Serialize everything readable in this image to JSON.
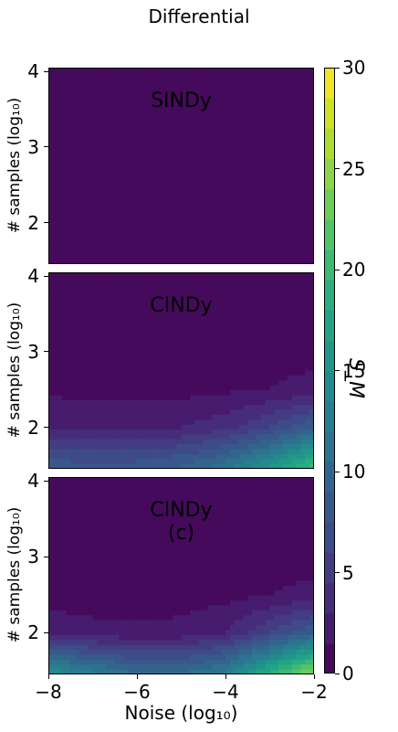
{
  "figure": {
    "suptitle": "Differential",
    "xlabel": "Noise (log₁₀)",
    "ylabel": "# samples (log₁₀)",
    "colorbar_label": "S_M"
  },
  "colors": {
    "viridis_low": "#440154",
    "viridis_mid": "#21918c",
    "viridis_high": "#fde725"
  },
  "chart_data": [
    {
      "type": "heatmap",
      "title": "SINDy",
      "xlabel": "",
      "ylabel": "# samples (log₁₀)",
      "xlim": [
        -8,
        -2
      ],
      "ylim": [
        1.45,
        4.05
      ],
      "x": [
        -8,
        -7,
        -6,
        -5,
        -4,
        -3,
        -2
      ],
      "y": [
        1.5,
        2,
        2.5,
        3,
        3.5,
        4
      ],
      "z": [
        [
          1.2,
          0.8,
          0.3,
          0.4,
          0.6,
          0.5,
          0.4
        ],
        [
          0.6,
          0.5,
          0.3,
          0.4,
          1.0,
          0.5,
          0.3
        ],
        [
          0.3,
          0.2,
          0.2,
          0.2,
          0.3,
          0.2,
          0.2
        ],
        [
          0.2,
          0.2,
          0.1,
          0.2,
          0.2,
          0.2,
          0.1
        ],
        [
          0.2,
          0.1,
          0.1,
          0.1,
          0.2,
          0.1,
          0.1
        ],
        [
          0.1,
          0.1,
          0.1,
          0.1,
          0.1,
          0.1,
          0.1
        ]
      ],
      "yticks": [
        2,
        3,
        4
      ],
      "xticks": []
    },
    {
      "type": "heatmap",
      "title": "CINDy",
      "xlabel": "",
      "ylabel": "# samples (log₁₀)",
      "xlim": [
        -8,
        -2
      ],
      "ylim": [
        1.45,
        4.05
      ],
      "x": [
        -8,
        -7,
        -6,
        -5,
        -4,
        -3,
        -2
      ],
      "y": [
        1.5,
        2,
        2.5,
        3,
        3.5,
        4
      ],
      "z": [
        [
          8,
          8,
          8,
          9,
          11,
          15,
          20
        ],
        [
          3,
          2.5,
          2.5,
          3,
          4,
          6,
          9
        ],
        [
          1.2,
          1.0,
          1.0,
          1.0,
          1.2,
          1.5,
          2
        ],
        [
          1.0,
          0.8,
          0.8,
          0.8,
          0.8,
          1.0,
          1.0
        ],
        [
          0.6,
          0.6,
          0.7,
          0.6,
          0.6,
          0.7,
          0.6
        ],
        [
          0.4,
          0.5,
          0.6,
          0.4,
          0.5,
          0.5,
          0.4
        ]
      ],
      "yticks": [
        2,
        3,
        4
      ],
      "xticks": []
    },
    {
      "type": "heatmap",
      "title": "CINDy (c)",
      "xlabel": "Noise (log₁₀)",
      "ylabel": "# samples (log₁₀)",
      "xlim": [
        -8,
        -2
      ],
      "ylim": [
        1.45,
        4.05
      ],
      "x": [
        -8,
        -7,
        -6,
        -5,
        -4,
        -3,
        -2
      ],
      "y": [
        1.5,
        2,
        2.5,
        3,
        3.5,
        4
      ],
      "z": [
        [
          14,
          12,
          10,
          10,
          12,
          18,
          24
        ],
        [
          2.5,
          2,
          1.8,
          2,
          3,
          6,
          9
        ],
        [
          0.8,
          0.7,
          0.8,
          0.8,
          1.0,
          1.5,
          2
        ],
        [
          0.8,
          0.8,
          0.8,
          0.8,
          0.8,
          0.8,
          0.8
        ],
        [
          0.7,
          0.7,
          0.7,
          0.7,
          0.7,
          0.7,
          0.7
        ],
        [
          0.5,
          0.6,
          0.6,
          0.6,
          0.6,
          0.6,
          0.6
        ]
      ],
      "yticks": [
        2,
        3,
        4
      ],
      "xticks": [
        -8,
        -6,
        -4,
        -2
      ]
    }
  ],
  "colorbar": {
    "range": [
      0,
      30
    ],
    "ticks": [
      0,
      5,
      10,
      15,
      20,
      25,
      30
    ],
    "colormap": "viridis"
  }
}
